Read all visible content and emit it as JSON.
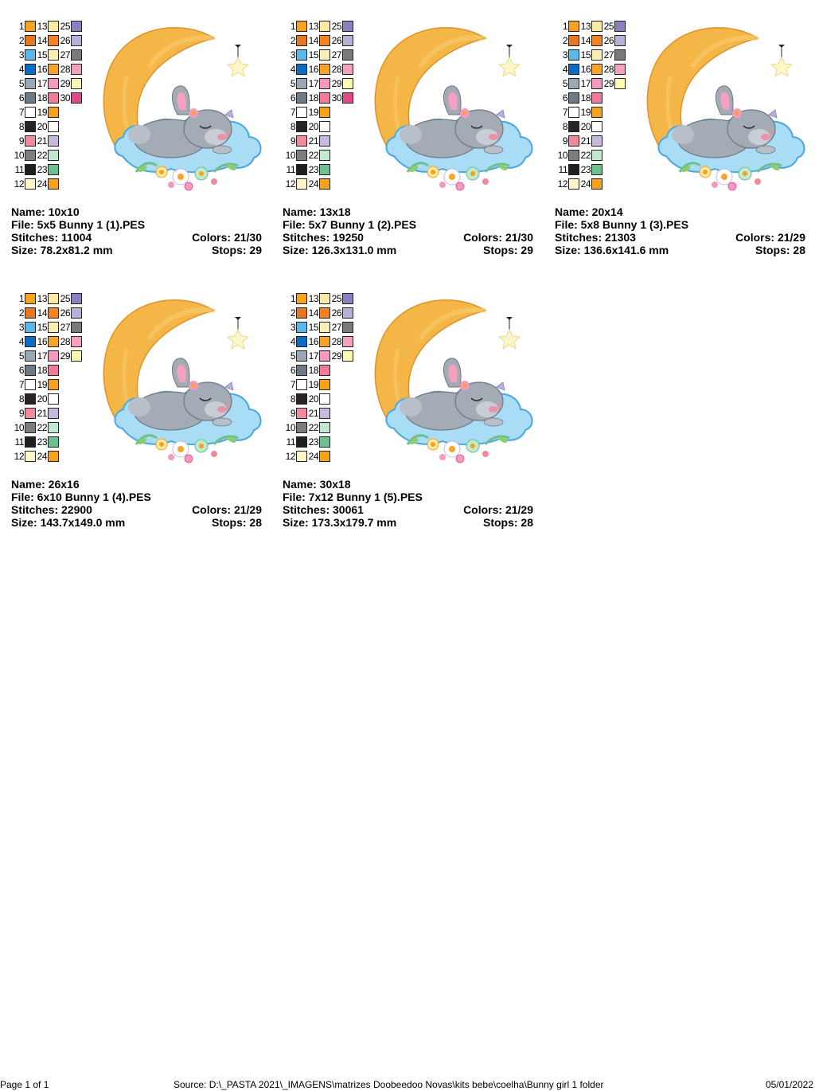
{
  "colors": {
    "1": "#f7a21a",
    "2": "#e87722",
    "3": "#5bb8e8",
    "4": "#0a6cc4",
    "5": "#9aa8b4",
    "6": "#707a86",
    "7": "#ffffff",
    "8": "#2a2326",
    "9": "#f08a9c",
    "10": "#7b7d80",
    "11": "#1f1f1f",
    "12": "#fdf6c8",
    "13": "#fbe9a6",
    "14": "#f58220",
    "15": "#fbeeb4",
    "16": "#f8a428",
    "17": "#f49ac1",
    "18": "#f07a9a",
    "19": "#f7a21a",
    "20": "#ffffff",
    "21": "#c6b9de",
    "22": "#c2e8cf",
    "23": "#6dbf8e",
    "24": "#f7a21a",
    "25": "#8b7fc0",
    "26": "#b7b1da",
    "27": "#7a7a7a",
    "28": "#f4a0bf",
    "29": "#fffbb4",
    "30": "#e04a86"
  },
  "designs": [
    {
      "palette": [
        [
          1,
          13,
          25
        ],
        [
          2,
          14,
          26
        ],
        [
          3,
          15,
          27
        ],
        [
          4,
          16,
          28
        ],
        [
          5,
          17,
          29
        ],
        [
          6,
          18,
          30
        ],
        [
          7,
          19
        ],
        [
          8,
          20
        ],
        [
          9,
          21
        ],
        [
          10,
          22
        ],
        [
          11,
          23
        ],
        [
          12,
          24
        ]
      ],
      "name": "Name: 10x10",
      "file": "File: 5x5 Bunny 1 (1).PES",
      "stitches": "Stitches: 11004",
      "colors_text": "Colors: 21/30",
      "size": "Size: 78.2x81.2 mm",
      "stops": "Stops: 29"
    },
    {
      "palette": [
        [
          1,
          13,
          25
        ],
        [
          2,
          14,
          26
        ],
        [
          3,
          15,
          27
        ],
        [
          4,
          16,
          28
        ],
        [
          5,
          17,
          29
        ],
        [
          6,
          18,
          30
        ],
        [
          7,
          19
        ],
        [
          8,
          20
        ],
        [
          9,
          21
        ],
        [
          10,
          22
        ],
        [
          11,
          23
        ],
        [
          12,
          24
        ]
      ],
      "name": "Name: 13x18",
      "file": "File: 5x7 Bunny 1 (2).PES",
      "stitches": "Stitches: 19250",
      "colors_text": "Colors: 21/30",
      "size": "Size: 126.3x131.0 mm",
      "stops": "Stops: 29"
    },
    {
      "palette": [
        [
          1,
          13,
          25
        ],
        [
          2,
          14,
          26
        ],
        [
          3,
          15,
          27
        ],
        [
          4,
          16,
          28
        ],
        [
          5,
          17,
          29
        ],
        [
          6,
          18
        ],
        [
          7,
          19
        ],
        [
          8,
          20
        ],
        [
          9,
          21
        ],
        [
          10,
          22
        ],
        [
          11,
          23
        ],
        [
          12,
          24
        ]
      ],
      "name": "Name: 20x14",
      "file": "File: 5x8 Bunny 1 (3).PES",
      "stitches": "Stitches: 21303",
      "colors_text": "Colors: 21/29",
      "size": "Size: 136.6x141.6 mm",
      "stops": "Stops: 28"
    },
    {
      "palette": [
        [
          1,
          13,
          25
        ],
        [
          2,
          14,
          26
        ],
        [
          3,
          15,
          27
        ],
        [
          4,
          16,
          28
        ],
        [
          5,
          17,
          29
        ],
        [
          6,
          18
        ],
        [
          7,
          19
        ],
        [
          8,
          20
        ],
        [
          9,
          21
        ],
        [
          10,
          22
        ],
        [
          11,
          23
        ],
        [
          12,
          24
        ]
      ],
      "name": "Name: 26x16",
      "file": "File: 6x10 Bunny 1 (4).PES",
      "stitches": "Stitches: 22900",
      "colors_text": "Colors: 21/29",
      "size": "Size: 143.7x149.0 mm",
      "stops": "Stops: 28"
    },
    {
      "palette": [
        [
          1,
          13,
          25
        ],
        [
          2,
          14,
          26
        ],
        [
          3,
          15,
          27
        ],
        [
          4,
          16,
          28
        ],
        [
          5,
          17,
          29
        ],
        [
          6,
          18
        ],
        [
          7,
          19
        ],
        [
          8,
          20
        ],
        [
          9,
          21
        ],
        [
          10,
          22
        ],
        [
          11,
          23
        ],
        [
          12,
          24
        ]
      ],
      "name": "Name: 30x18",
      "file": "File: 7x12 Bunny 1 (5).PES",
      "stitches": "Stitches: 30061",
      "colors_text": "Colors: 21/29",
      "size": "Size: 173.3x179.7 mm",
      "stops": "Stops: 28"
    }
  ],
  "footer": {
    "page": "Page 1 of 1",
    "source": "Source: D:\\_PASTA 2021\\_IMAGENS\\matrizes Doobeedoo Novas\\kits bebe\\coelha\\Bunny girl 1 folder",
    "date": "05/01/2022"
  }
}
